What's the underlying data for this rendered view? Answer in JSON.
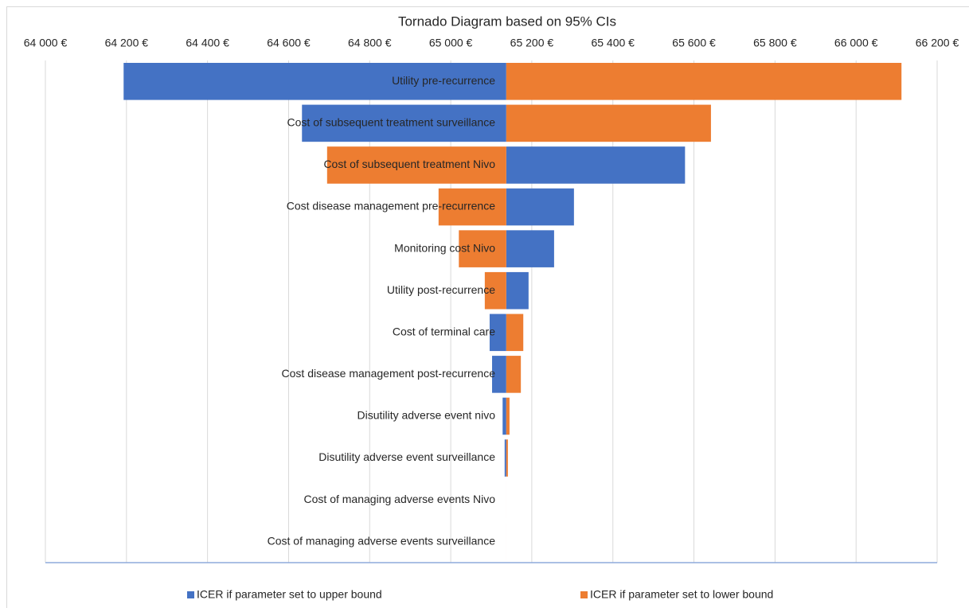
{
  "chart_data": {
    "type": "tornado",
    "title": "Tornado Diagram based on 95% CIs",
    "categories": [
      "Utility pre-recurrence",
      "Cost of subsequent treatment surveillance",
      "Cost of subsequent treatment Nivo",
      "Cost disease management pre-recurrence",
      "Monitoring cost Nivo",
      "Utility post-recurrence",
      "Cost of terminal care",
      "Cost disease management post-recurrence",
      "Disutility adverse event nivo",
      "Disutility adverse event surveillance",
      "Cost of managing adverse events Nivo",
      "Cost of managing adverse events surveillance"
    ],
    "base_value": 65137,
    "series": [
      {
        "name": "ICER if parameter set to upper bound",
        "color": "#4472c4",
        "values": [
          64193,
          64633,
          65578,
          65304,
          65255,
          65192,
          65096,
          65102,
          65128,
          65133,
          65137,
          65137
        ]
      },
      {
        "name": "ICER if parameter set to lower bound",
        "color": "#ed7d31",
        "values": [
          66112,
          65642,
          64695,
          64970,
          65020,
          65084,
          65179,
          65173,
          65145,
          65141,
          65137,
          65137
        ]
      }
    ],
    "xlim": [
      64000,
      66200
    ],
    "xticks": [
      {
        "value": 64000,
        "label": "64 000 €"
      },
      {
        "value": 64200,
        "label": "64 200 €"
      },
      {
        "value": 64400,
        "label": "64 400 €"
      },
      {
        "value": 64600,
        "label": "64 600 €"
      },
      {
        "value": 64800,
        "label": "64 800 €"
      },
      {
        "value": 65000,
        "label": "65 000 €"
      },
      {
        "value": 65200,
        "label": "65 200 €"
      },
      {
        "value": 65400,
        "label": "65 400 €"
      },
      {
        "value": 65600,
        "label": "65 600 €"
      },
      {
        "value": 65800,
        "label": "65 800 €"
      },
      {
        "value": 66000,
        "label": "66 000 €"
      },
      {
        "value": 66200,
        "label": "66 200 €"
      }
    ],
    "grid": true,
    "legend": "bottom"
  }
}
